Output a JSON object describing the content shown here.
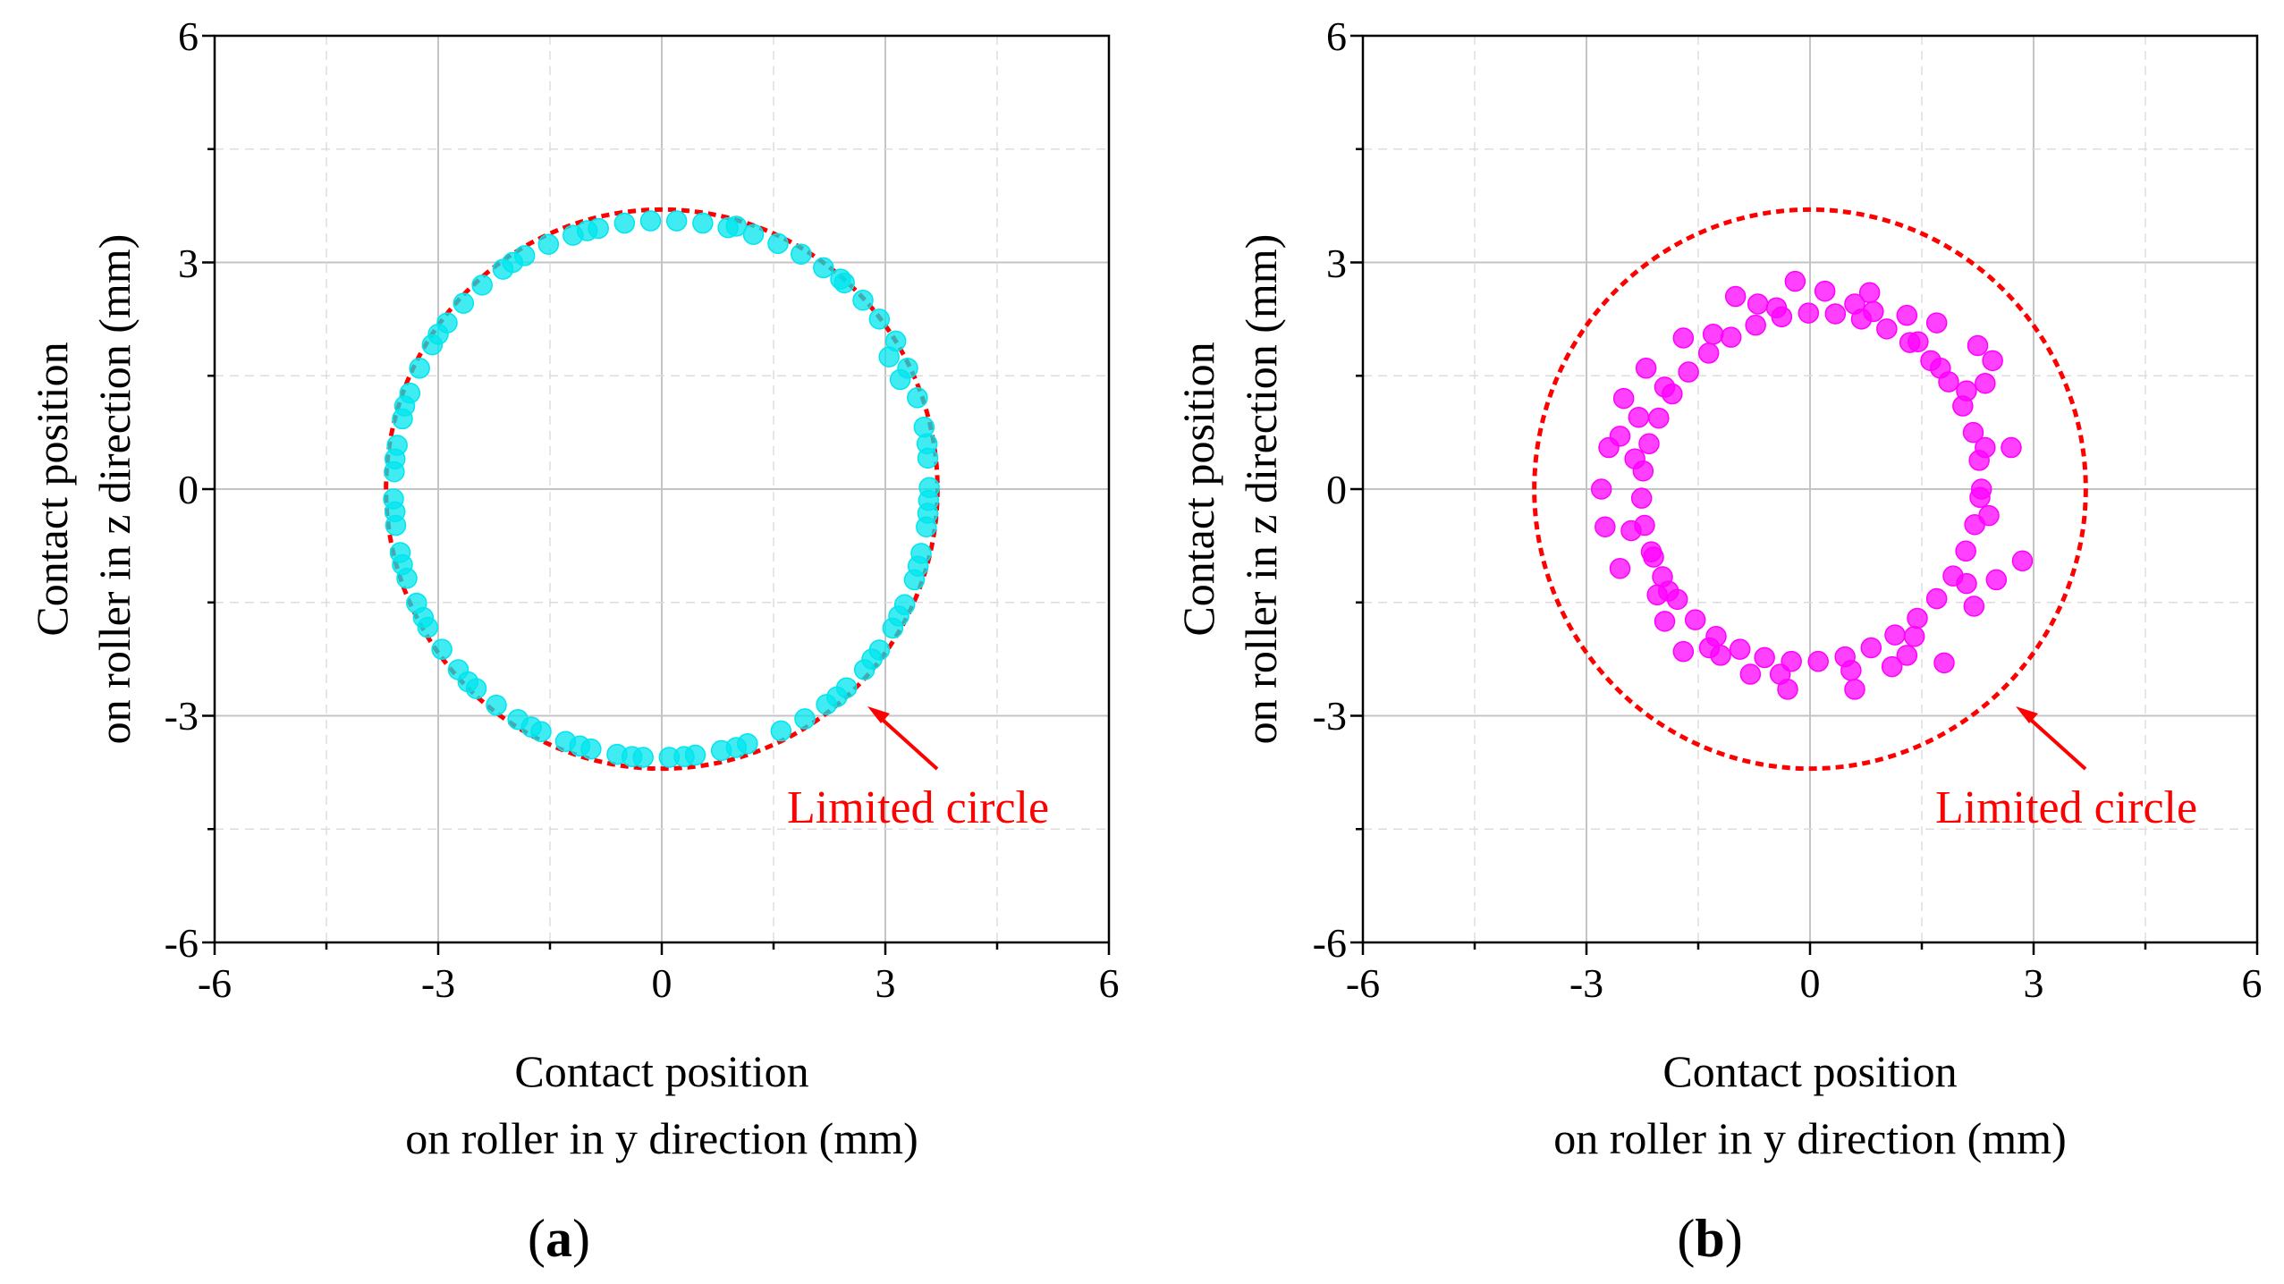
{
  "chart_data": [
    {
      "type": "scatter",
      "panel_label": {
        "open": "(",
        "letter": "a",
        "close": ")"
      },
      "xlabel": [
        "Contact position",
        "on roller in y direction (mm)"
      ],
      "ylabel": [
        "Contact position",
        "on roller in z direction (mm)"
      ],
      "xlim": [
        -6,
        6
      ],
      "ylim": [
        -6,
        6
      ],
      "xticks": [
        -6,
        -3,
        0,
        3,
        6
      ],
      "yticks": [
        -6,
        -3,
        0,
        3,
        6
      ],
      "xtick_labels": [
        "-6",
        "-3",
        "0",
        "3",
        "6"
      ],
      "ytick_labels": [
        "-6",
        "-3",
        "0",
        "3",
        "6"
      ],
      "grid": true,
      "limit_circle": {
        "radius": 3.7,
        "color": "#ff0000",
        "style": "dashed"
      },
      "annotation": {
        "text": "Limited circle",
        "color": "#ff0000",
        "arrow_to": [
          2.8,
          -2.9
        ]
      },
      "series": [
        {
          "name": "contact points",
          "color": "#00e5ee",
          "gaps_deg": [
            [
              282,
              292
            ],
            [
              7,
              16
            ],
            [
              18,
              24
            ]
          ],
          "points": [
            [
              3.59,
              0.02
            ],
            [
              3.57,
              0.41
            ],
            [
              3.52,
              0.82
            ],
            [
              3.43,
              1.21
            ],
            [
              3.3,
              1.6
            ],
            [
              3.14,
              1.96
            ],
            [
              2.92,
              2.25
            ],
            [
              2.7,
              2.5
            ],
            [
              2.45,
              2.73
            ],
            [
              2.17,
              2.93
            ],
            [
              1.87,
              3.11
            ],
            [
              1.56,
              3.25
            ],
            [
              1.23,
              3.37
            ],
            [
              0.89,
              3.46
            ],
            [
              0.55,
              3.52
            ],
            [
              0.2,
              3.55
            ],
            [
              -0.15,
              3.55
            ],
            [
              -0.5,
              3.52
            ],
            [
              -0.85,
              3.45
            ],
            [
              -1.19,
              3.36
            ],
            [
              -1.52,
              3.24
            ],
            [
              -1.84,
              3.09
            ],
            [
              -2.13,
              2.91
            ],
            [
              -2.41,
              2.7
            ],
            [
              -2.66,
              2.46
            ],
            [
              -2.88,
              2.2
            ],
            [
              -3.08,
              1.91
            ],
            [
              -3.25,
              1.6
            ],
            [
              -3.38,
              1.27
            ],
            [
              -3.48,
              0.93
            ],
            [
              -3.55,
              0.58
            ],
            [
              -3.59,
              0.23
            ],
            [
              -3.6,
              -0.13
            ],
            [
              -3.57,
              -0.48
            ],
            [
              -3.51,
              -0.84
            ],
            [
              -3.42,
              -1.18
            ],
            [
              -3.29,
              -1.51
            ],
            [
              -3.14,
              -1.83
            ],
            [
              -2.95,
              -2.12
            ],
            [
              -2.73,
              -2.39
            ],
            [
              -2.49,
              -2.64
            ],
            [
              -2.22,
              -2.86
            ],
            [
              -1.93,
              -3.05
            ],
            [
              -1.62,
              -3.21
            ],
            [
              -1.29,
              -3.34
            ],
            [
              -0.95,
              -3.44
            ],
            [
              -0.6,
              -3.51
            ],
            [
              -0.25,
              -3.55
            ],
            [
              0.1,
              -3.55
            ],
            [
              0.45,
              -3.52
            ],
            [
              0.8,
              -3.46
            ],
            [
              1.15,
              -3.37
            ],
            [
              1.6,
              -3.2
            ],
            [
              1.92,
              -3.04
            ],
            [
              2.21,
              -2.85
            ],
            [
              2.48,
              -2.63
            ],
            [
              2.72,
              -2.39
            ],
            [
              2.92,
              -2.13
            ],
            [
              3.1,
              -1.84
            ],
            [
              3.26,
              -1.53
            ],
            [
              3.39,
              -1.2
            ],
            [
              3.48,
              -0.85
            ],
            [
              3.55,
              -0.5
            ],
            [
              3.58,
              -0.15
            ],
            [
              3.2,
              1.45
            ],
            [
              3.05,
              1.75
            ],
            [
              2.4,
              2.78
            ],
            [
              1.0,
              3.48
            ],
            [
              -1.0,
              3.42
            ],
            [
              -2.0,
              3.0
            ],
            [
              -3.0,
              2.05
            ],
            [
              -3.45,
              1.1
            ],
            [
              -3.58,
              0.4
            ],
            [
              -3.58,
              -0.3
            ],
            [
              -3.48,
              -1.0
            ],
            [
              -3.2,
              -1.7
            ],
            [
              -2.6,
              -2.55
            ],
            [
              -1.75,
              -3.15
            ],
            [
              -1.1,
              -3.4
            ],
            [
              -0.4,
              -3.54
            ],
            [
              0.3,
              -3.54
            ],
            [
              1.0,
              -3.42
            ],
            [
              2.35,
              -2.75
            ],
            [
              2.82,
              -2.25
            ],
            [
              3.18,
              -1.68
            ],
            [
              3.44,
              -1.02
            ],
            [
              3.57,
              -0.32
            ],
            [
              3.56,
              0.6
            ]
          ]
        }
      ]
    },
    {
      "type": "scatter",
      "panel_label": {
        "open": "(",
        "letter": "b",
        "close": ")"
      },
      "xlabel": [
        "Contact position",
        "on roller in y direction (mm)"
      ],
      "ylabel": [
        "Contact position",
        "on roller in z direction (mm)"
      ],
      "xlim": [
        -6,
        6
      ],
      "ylim": [
        -6,
        6
      ],
      "xticks": [
        -6,
        -3,
        0,
        3,
        6
      ],
      "yticks": [
        -6,
        -3,
        0,
        3,
        6
      ],
      "xtick_labels": [
        "-6",
        "-3",
        "0",
        "3",
        "6"
      ],
      "ytick_labels": [
        "-6",
        "-3",
        "0",
        "3",
        "6"
      ],
      "grid": true,
      "limit_circle": {
        "radius": 3.7,
        "color": "#ff0000",
        "style": "dashed"
      },
      "annotation": {
        "text": "Limited circle",
        "color": "#ff0000",
        "arrow_to": [
          2.8,
          -2.9
        ]
      },
      "series": [
        {
          "name": "contact points",
          "color": "#ff00ff",
          "points": [
            [
              2.3,
              0.0
            ],
            [
              2.27,
              0.38
            ],
            [
              2.19,
              0.75
            ],
            [
              2.05,
              1.1
            ],
            [
              1.86,
              1.42
            ],
            [
              1.62,
              1.7
            ],
            [
              1.34,
              1.94
            ],
            [
              1.03,
              2.12
            ],
            [
              0.69,
              2.25
            ],
            [
              0.34,
              2.32
            ],
            [
              -0.02,
              2.33
            ],
            [
              -0.38,
              2.28
            ],
            [
              -0.73,
              2.17
            ],
            [
              -1.06,
              2.01
            ],
            [
              -1.36,
              1.8
            ],
            [
              -1.63,
              1.55
            ],
            [
              -1.85,
              1.26
            ],
            [
              -2.03,
              0.94
            ],
            [
              -2.16,
              0.6
            ],
            [
              -2.24,
              0.24
            ],
            [
              -2.26,
              -0.12
            ],
            [
              -2.22,
              -0.48
            ],
            [
              -2.13,
              -0.83
            ],
            [
              -1.98,
              -1.16
            ],
            [
              -1.78,
              -1.46
            ],
            [
              -1.54,
              -1.73
            ],
            [
              -1.26,
              -1.95
            ],
            [
              -0.94,
              -2.12
            ],
            [
              -0.61,
              -2.23
            ],
            [
              -0.25,
              -2.28
            ],
            [
              0.11,
              -2.28
            ],
            [
              0.47,
              -2.22
            ],
            [
              0.82,
              -2.1
            ],
            [
              1.14,
              -1.93
            ],
            [
              1.44,
              -1.71
            ],
            [
              1.7,
              -1.45
            ],
            [
              1.92,
              -1.15
            ],
            [
              2.09,
              -0.82
            ],
            [
              2.21,
              -0.47
            ],
            [
              2.28,
              -0.11
            ],
            [
              2.35,
              0.55
            ],
            [
              2.1,
              1.3
            ],
            [
              1.45,
              1.95
            ],
            [
              0.6,
              2.45
            ],
            [
              -0.45,
              2.4
            ],
            [
              -1.3,
              2.05
            ],
            [
              -1.95,
              1.35
            ],
            [
              -2.35,
              0.4
            ],
            [
              -2.4,
              -0.55
            ],
            [
              -2.05,
              -1.4
            ],
            [
              -1.35,
              -2.1
            ],
            [
              -0.4,
              -2.45
            ],
            [
              0.55,
              -2.4
            ],
            [
              1.4,
              -1.95
            ],
            [
              2.1,
              -1.25
            ],
            [
              2.4,
              -0.35
            ],
            [
              2.7,
              0.55
            ],
            [
              2.45,
              1.7
            ],
            [
              1.7,
              2.2
            ],
            [
              0.8,
              2.6
            ],
            [
              -0.2,
              2.75
            ],
            [
              -1.0,
              2.55
            ],
            [
              -1.7,
              2.0
            ],
            [
              -2.5,
              1.2
            ],
            [
              -2.7,
              0.55
            ],
            [
              -2.8,
              0.0
            ],
            [
              -2.75,
              -0.5
            ],
            [
              -2.55,
              -1.05
            ],
            [
              -1.95,
              -1.75
            ],
            [
              -1.7,
              -2.15
            ],
            [
              -0.8,
              -2.45
            ],
            [
              -0.3,
              -2.65
            ],
            [
              0.6,
              -2.65
            ],
            [
              1.3,
              -2.2
            ],
            [
              1.8,
              -2.3
            ],
            [
              2.5,
              -1.2
            ],
            [
              2.85,
              -0.95
            ],
            [
              0.2,
              2.62
            ],
            [
              1.3,
              2.3
            ],
            [
              -2.2,
              1.6
            ],
            [
              2.25,
              1.9
            ],
            [
              -2.55,
              0.7
            ],
            [
              2.35,
              1.4
            ],
            [
              -2.1,
              -0.9
            ],
            [
              1.1,
              -2.35
            ],
            [
              -1.2,
              -2.2
            ],
            [
              -2.3,
              0.95
            ],
            [
              2.2,
              -1.55
            ],
            [
              -0.7,
              2.45
            ],
            [
              1.75,
              1.6
            ],
            [
              -1.9,
              -1.35
            ],
            [
              0.85,
              2.35
            ]
          ]
        }
      ]
    }
  ]
}
